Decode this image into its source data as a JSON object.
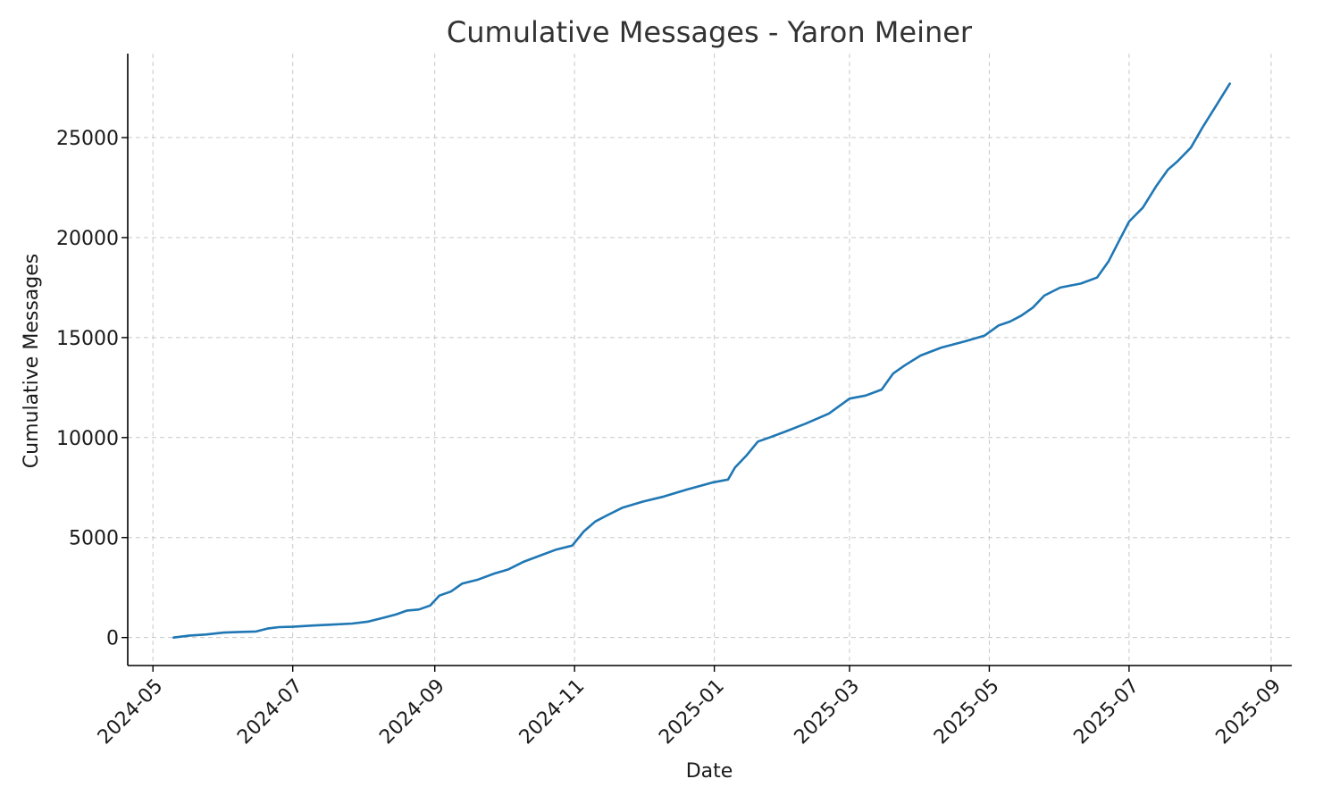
{
  "chart_data": {
    "type": "line",
    "title": "Cumulative Messages - Yaron Meiner",
    "xlabel": "Date",
    "ylabel": "Cumulative Messages",
    "x_axis_type": "date",
    "xlim": [
      "2024-04-20",
      "2025-09-10"
    ],
    "ylim": [
      -1400,
      29200
    ],
    "x_ticks": [
      "2024-05-01",
      "2024-07-01",
      "2024-09-01",
      "2024-11-01",
      "2025-01-01",
      "2025-03-01",
      "2025-05-01",
      "2025-07-01",
      "2025-09-01"
    ],
    "x_tick_labels": [
      "2024-05",
      "2024-07",
      "2024-09",
      "2024-11",
      "2025-01",
      "2025-03",
      "2025-05",
      "2025-07",
      "2025-09"
    ],
    "y_ticks": [
      0,
      5000,
      10000,
      15000,
      20000,
      25000
    ],
    "y_tick_labels": [
      "0",
      "5000",
      "10000",
      "15000",
      "20000",
      "25000"
    ],
    "grid": true,
    "colors": {
      "series": "#1f77b4"
    },
    "series": [
      {
        "x": [
          "2024-05-10",
          "2024-05-17",
          "2024-05-24",
          "2024-06-01",
          "2024-06-08",
          "2024-06-15",
          "2024-06-20",
          "2024-06-25",
          "2024-07-01",
          "2024-07-10",
          "2024-07-20",
          "2024-07-27",
          "2024-08-03",
          "2024-08-10",
          "2024-08-15",
          "2024-08-20",
          "2024-08-25",
          "2024-08-30",
          "2024-09-03",
          "2024-09-08",
          "2024-09-13",
          "2024-09-20",
          "2024-09-27",
          "2024-10-03",
          "2024-10-10",
          "2024-10-17",
          "2024-10-24",
          "2024-10-31",
          "2024-11-05",
          "2024-11-10",
          "2024-11-15",
          "2024-11-22",
          "2024-12-01",
          "2024-12-10",
          "2024-12-20",
          "2024-12-31",
          "2025-01-07",
          "2025-01-10",
          "2025-01-15",
          "2025-01-20",
          "2025-01-25",
          "2025-02-01",
          "2025-02-10",
          "2025-02-20",
          "2025-03-01",
          "2025-03-08",
          "2025-03-15",
          "2025-03-20",
          "2025-03-25",
          "2025-04-01",
          "2025-04-10",
          "2025-04-20",
          "2025-04-29",
          "2025-05-05",
          "2025-05-10",
          "2025-05-15",
          "2025-05-20",
          "2025-05-25",
          "2025-06-01",
          "2025-06-10",
          "2025-06-17",
          "2025-06-22",
          "2025-06-26",
          "2025-07-01",
          "2025-07-07",
          "2025-07-13",
          "2025-07-18",
          "2025-07-22",
          "2025-07-28",
          "2025-08-02",
          "2025-08-08",
          "2025-08-14"
        ],
        "y": [
          0,
          100,
          150,
          250,
          280,
          300,
          450,
          520,
          540,
          600,
          660,
          700,
          800,
          1000,
          1150,
          1350,
          1400,
          1600,
          2100,
          2300,
          2700,
          2900,
          3200,
          3400,
          3800,
          4100,
          4400,
          4600,
          5300,
          5800,
          6100,
          6500,
          6800,
          7050,
          7400,
          7750,
          7900,
          8500,
          9100,
          9800,
          10000,
          10300,
          10700,
          11200,
          11950,
          12100,
          12400,
          13200,
          13600,
          14100,
          14500,
          14800,
          15100,
          15600,
          15800,
          16100,
          16500,
          17100,
          17500,
          17700,
          18000,
          18800,
          19700,
          20800,
          21500,
          22600,
          23400,
          23800,
          24500,
          25500,
          26600,
          27700
        ]
      }
    ]
  }
}
